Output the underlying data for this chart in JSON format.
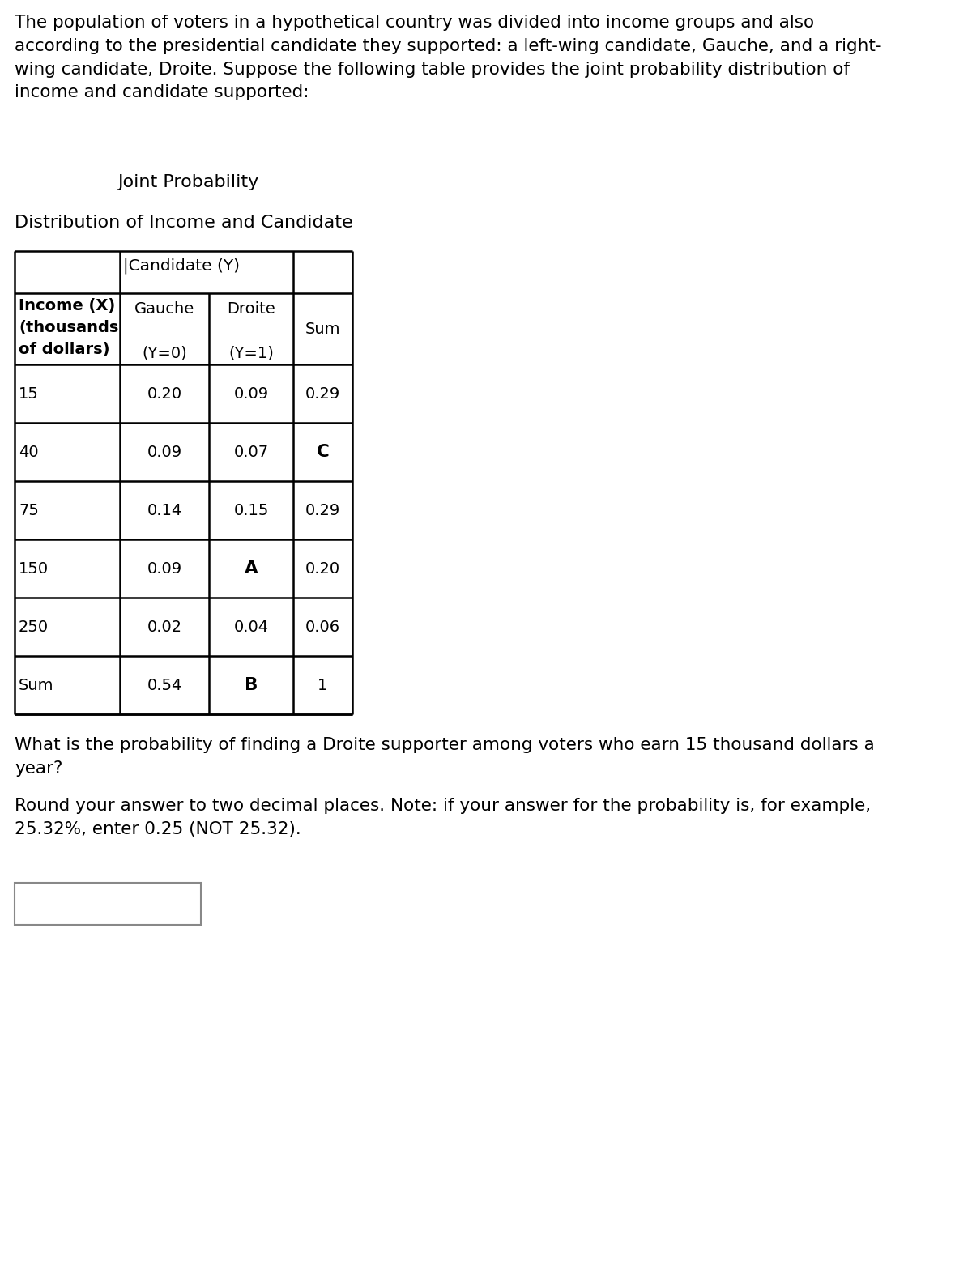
{
  "intro_text": "The population of voters in a hypothetical country was divided into income groups and also\naccording to the presidential candidate they supported: a left-wing candidate, Gauche, and a right-\nwing candidate, Droite. Suppose the following table provides the joint probability distribution of\nincome and candidate supported:",
  "subtitle": "Joint Probability",
  "table_title": "Distribution of Income and Candidate",
  "col_header_span": "Candidate (Y)",
  "rows": [
    [
      "15",
      "0.20",
      "0.09",
      "0.29"
    ],
    [
      "40",
      "0.09",
      "0.07",
      "C"
    ],
    [
      "75",
      "0.14",
      "0.15",
      "0.29"
    ],
    [
      "150",
      "0.09",
      "A",
      "0.20"
    ],
    [
      "250",
      "0.02",
      "0.04",
      "0.06"
    ],
    [
      "Sum",
      "0.54",
      "B",
      "1"
    ]
  ],
  "question_text": "What is the probability of finding a Droite supporter among voters who earn 15 thousand dollars a\nyear?",
  "note_text": "Round your answer to two decimal places. Note: if your answer for the probability is, for example,\n25.32%, enter 0.25 (NOT 25.32).",
  "bg_color": "#ffffff",
  "text_color": "#000000",
  "bold_cells": [
    "C",
    "A",
    "B"
  ]
}
